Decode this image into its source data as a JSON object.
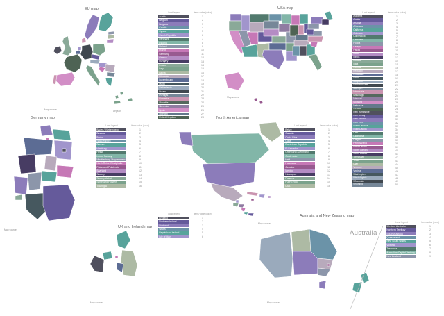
{
  "legend_headers": {
    "land": "Land legend",
    "value": "Items value (color)"
  },
  "palette": [
    "#50505e",
    "#655a9b",
    "#8c7cba",
    "#6b93a8",
    "#58a39b",
    "#a195cc",
    "#527a6e",
    "#82b6a8",
    "#8c96aa",
    "#c678b6",
    "#985a90",
    "#b48cc4",
    "#473c63",
    "#8aa998",
    "#7ba28c",
    "#adbaa4",
    "#b8aabc",
    "#5c6c94",
    "#46585f",
    "#9aaabc",
    "#40484f",
    "#768798",
    "#ca94b0",
    "#55695e",
    "#907ca2",
    "#d28ec6",
    "#64798c",
    "#4e6354"
  ],
  "line_color": "#bbbbbb",
  "maps": [
    {
      "id": "eu",
      "title": "EU map",
      "footnote": "Map source",
      "island_label": "Aegean",
      "legend": [
        {
          "name": "Austria",
          "value": 1
        },
        {
          "name": "Belgium",
          "value": 2
        },
        {
          "name": "Bulgaria",
          "value": 3
        },
        {
          "name": "Croatia",
          "value": 4
        },
        {
          "name": "Cyprus",
          "value": 5
        },
        {
          "name": "Czech Republic",
          "value": 6
        },
        {
          "name": "Denmark",
          "value": 7
        },
        {
          "name": "Estonia",
          "value": 8
        },
        {
          "name": "Finland",
          "value": 9
        },
        {
          "name": "France",
          "value": 10
        },
        {
          "name": "Germany",
          "value": 11
        },
        {
          "name": "Greece",
          "value": 12
        },
        {
          "name": "Hungary",
          "value": 13
        },
        {
          "name": "Ireland",
          "value": 14
        },
        {
          "name": "Italy",
          "value": 15
        },
        {
          "name": "Latvia",
          "value": 16
        },
        {
          "name": "Lithuania",
          "value": 17
        },
        {
          "name": "Luxembourg",
          "value": 18
        },
        {
          "name": "Malta",
          "value": 19
        },
        {
          "name": "Netherlands",
          "value": 20
        },
        {
          "name": "Poland",
          "value": 21
        },
        {
          "name": "Portugal",
          "value": 22
        },
        {
          "name": "Romania",
          "value": 23
        },
        {
          "name": "Slovakia",
          "value": 24
        },
        {
          "name": "Slovenia",
          "value": 25
        },
        {
          "name": "Spain",
          "value": 26
        },
        {
          "name": "Sweden",
          "value": 27
        },
        {
          "name": "United Kingdom",
          "value": 28
        }
      ]
    },
    {
      "id": "usa",
      "title": "USA map",
      "footnote": "Map source",
      "legend": [
        {
          "name": "Alabama",
          "value": 1
        },
        {
          "name": "Alaska",
          "value": 2
        },
        {
          "name": "Arizona",
          "value": 3
        },
        {
          "name": "Arkansas",
          "value": 4
        },
        {
          "name": "California",
          "value": 5
        },
        {
          "name": "Colorado",
          "value": 6
        },
        {
          "name": "Connecticut",
          "value": 7
        },
        {
          "name": "Delaware",
          "value": 8
        },
        {
          "name": "Florida",
          "value": 9
        },
        {
          "name": "Georgia",
          "value": 10
        },
        {
          "name": "Hawaii",
          "value": 11
        },
        {
          "name": "Idaho",
          "value": 12
        },
        {
          "name": "Illinois",
          "value": 13
        },
        {
          "name": "Indiana",
          "value": 14
        },
        {
          "name": "Iowa",
          "value": 15
        },
        {
          "name": "Kansas",
          "value": 16
        },
        {
          "name": "Kentucky",
          "value": 17
        },
        {
          "name": "Louisiana",
          "value": 18
        },
        {
          "name": "Maine",
          "value": 19
        },
        {
          "name": "Maryland",
          "value": 20
        },
        {
          "name": "Massachusetts",
          "value": 21
        },
        {
          "name": "Michigan",
          "value": 22
        },
        {
          "name": "Minnesota",
          "value": 23
        },
        {
          "name": "Mississippi",
          "value": 24
        },
        {
          "name": "Missouri",
          "value": 25
        },
        {
          "name": "Montana",
          "value": 26
        },
        {
          "name": "Nebraska",
          "value": 27
        },
        {
          "name": "Nevada",
          "value": 28
        },
        {
          "name": "New Hampshire",
          "value": 29
        },
        {
          "name": "New Jersey",
          "value": 30
        },
        {
          "name": "New Mexico",
          "value": 31
        },
        {
          "name": "New York",
          "value": 32
        },
        {
          "name": "North Carolina",
          "value": 33
        },
        {
          "name": "North Dakota",
          "value": 34
        },
        {
          "name": "Ohio",
          "value": 35
        },
        {
          "name": "Oklahoma",
          "value": 36
        },
        {
          "name": "Oregon",
          "value": 37
        },
        {
          "name": "Pennsylvania",
          "value": 38
        },
        {
          "name": "Rhode Island",
          "value": 39
        },
        {
          "name": "South Carolina",
          "value": 40
        },
        {
          "name": "South Dakota",
          "value": 41
        },
        {
          "name": "Tennessee",
          "value": 42
        },
        {
          "name": "Texas",
          "value": 43
        },
        {
          "name": "Utah",
          "value": 44
        },
        {
          "name": "Vermont",
          "value": 45
        },
        {
          "name": "Virginia",
          "value": 46
        },
        {
          "name": "Washington",
          "value": 47
        },
        {
          "name": "West Virginia",
          "value": 48
        },
        {
          "name": "Wisconsin",
          "value": 49
        },
        {
          "name": "Wyoming",
          "value": 50
        }
      ]
    },
    {
      "id": "germany",
      "title": "Germany map",
      "footnote": "Map source",
      "legend": [
        {
          "name": "Baden-Württemberg",
          "value": 1
        },
        {
          "name": "Bavaria",
          "value": 2
        },
        {
          "name": "Berlin",
          "value": 3
        },
        {
          "name": "Brandenburg",
          "value": 4
        },
        {
          "name": "Bremen",
          "value": 5
        },
        {
          "name": "Hamburg",
          "value": 6
        },
        {
          "name": "Hesse",
          "value": 7
        },
        {
          "name": "Lower Saxony",
          "value": 8
        },
        {
          "name": "Mecklenburg-Vorpommern",
          "value": 9
        },
        {
          "name": "North Rhine-Westphalia",
          "value": 10
        },
        {
          "name": "Rhineland-Palatinate",
          "value": 11
        },
        {
          "name": "Saarland",
          "value": 12
        },
        {
          "name": "Saxony",
          "value": 13
        },
        {
          "name": "Saxony-Anhalt",
          "value": 14
        },
        {
          "name": "Schleswig-Holstein",
          "value": 15
        },
        {
          "name": "Thuringia",
          "value": 16
        }
      ]
    },
    {
      "id": "north-america",
      "title": "North America map",
      "footnote": "Map source",
      "legend": [
        {
          "name": "Belize",
          "value": 1
        },
        {
          "name": "Canada",
          "value": 2
        },
        {
          "name": "Costa Rica",
          "value": 3
        },
        {
          "name": "Cuba",
          "value": 4
        },
        {
          "name": "Dominican Republic",
          "value": 5
        },
        {
          "name": "El Salvador",
          "value": 6
        },
        {
          "name": "Greenland (Denmark)",
          "value": 7
        },
        {
          "name": "Guatemala",
          "value": 8
        },
        {
          "name": "Haiti",
          "value": 9
        },
        {
          "name": "Honduras",
          "value": 10
        },
        {
          "name": "Jamaica",
          "value": 11
        },
        {
          "name": "Mexico",
          "value": 12
        },
        {
          "name": "Nicaragua",
          "value": 13
        },
        {
          "name": "Panama",
          "value": 14
        },
        {
          "name": "Puerto Rico",
          "value": 15
        },
        {
          "name": "USA",
          "value": 16
        }
      ]
    },
    {
      "id": "uk-ireland",
      "title": "UK and Ireland map",
      "footnote": "Map source",
      "legend": [
        {
          "name": "England",
          "value": 1
        },
        {
          "name": "Northern Ireland",
          "value": 2
        },
        {
          "name": "Scotland",
          "value": 3
        },
        {
          "name": "Wales",
          "value": 4
        },
        {
          "name": "Republic of Ireland",
          "value": 5
        },
        {
          "name": "Isle of Man",
          "value": 6
        }
      ]
    },
    {
      "id": "australia-nz",
      "title": "Australia and New Zealand map",
      "footnote": "Map source",
      "continent_label": "Australia",
      "legend": [
        {
          "name": "Western Australia",
          "value": 1
        },
        {
          "name": "Northern Territory",
          "value": 2
        },
        {
          "name": "South Australia",
          "value": 3
        },
        {
          "name": "Queensland",
          "value": 4
        },
        {
          "name": "New South Wales",
          "value": 5
        },
        {
          "name": "Victoria",
          "value": 6
        },
        {
          "name": "Tasmania",
          "value": 7
        },
        {
          "name": "Australian Capital Territory",
          "value": 8
        },
        {
          "name": "New Zealand",
          "value": 9
        }
      ]
    }
  ]
}
